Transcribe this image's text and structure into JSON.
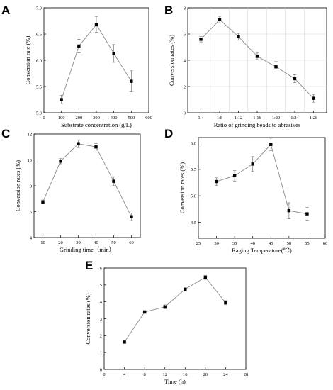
{
  "chart_data": [
    {
      "panel": "A",
      "type": "line",
      "xlabel": "Substrate concentration (g/L)",
      "ylabel": "Conversion rate (%)",
      "xlim": [
        0,
        600
      ],
      "ylim": [
        5.0,
        7.0
      ],
      "xticks": [
        0,
        100,
        200,
        300,
        400,
        500,
        600
      ],
      "yticks": [
        5.0,
        5.5,
        6.0,
        6.5,
        7.0
      ],
      "ytick_decimals": 1,
      "x": [
        100,
        200,
        300,
        400,
        500
      ],
      "y": [
        5.25,
        6.27,
        6.68,
        6.13,
        5.6
      ],
      "err": [
        0.08,
        0.13,
        0.15,
        0.17,
        0.2
      ]
    },
    {
      "panel": "B",
      "type": "line",
      "xlabel": "Ratio of grinding beads to abrasives",
      "ylabel": "Conversion rates (%)",
      "categories": [
        "1:4",
        "1:8",
        "1:12",
        "1:16",
        "1:20",
        "1:24",
        "1:28"
      ],
      "ylim": [
        0,
        8
      ],
      "yticks": [
        0,
        2,
        4,
        6,
        8
      ],
      "ytick_decimals": 0,
      "y": [
        5.6,
        7.1,
        5.8,
        4.3,
        3.5,
        2.6,
        1.1
      ],
      "err": [
        0.2,
        0.25,
        0.25,
        0.25,
        0.4,
        0.3,
        0.3
      ]
    },
    {
      "panel": "C",
      "type": "line",
      "xlabel": "Grinding time（min）",
      "ylabel": "Conversion rates (%)",
      "xlim": [
        5,
        65
      ],
      "ylim": [
        4,
        12
      ],
      "xticks": [
        10,
        20,
        30,
        40,
        50,
        60
      ],
      "yticks": [
        4,
        6,
        8,
        10,
        12
      ],
      "ytick_decimals": 0,
      "x": [
        10,
        20,
        30,
        40,
        50,
        60
      ],
      "y": [
        6.75,
        9.9,
        11.25,
        11.0,
        8.35,
        5.6
      ],
      "err": [
        0.15,
        0.2,
        0.3,
        0.25,
        0.35,
        0.3
      ]
    },
    {
      "panel": "D",
      "type": "line",
      "xlabel": "Raging   Temperature(℃)",
      "ylabel": "Conversion rates (%)",
      "xlim": [
        25,
        60
      ],
      "ylim": [
        4.2,
        6.1
      ],
      "xticks": [
        25,
        30,
        35,
        40,
        45,
        50,
        55,
        60
      ],
      "yticks": [
        4.5,
        5.0,
        5.5,
        6.0
      ],
      "ytick_decimals": 1,
      "x": [
        30,
        35,
        40,
        45,
        50,
        55
      ],
      "y": [
        5.27,
        5.38,
        5.6,
        5.97,
        4.72,
        4.66
      ],
      "err": [
        0.07,
        0.1,
        0.14,
        0.12,
        0.15,
        0.12
      ]
    },
    {
      "panel": "E",
      "type": "line",
      "xlabel": "Time (h)",
      "ylabel": "Conversion rates (%)",
      "xlim": [
        0,
        28
      ],
      "ylim": [
        0,
        6
      ],
      "xticks": [
        0,
        4,
        8,
        12,
        16,
        20,
        24,
        28
      ],
      "yticks": [
        0,
        1,
        2,
        3,
        4,
        5,
        6
      ],
      "ytick_decimals": 0,
      "x": [
        4,
        8,
        12,
        16,
        20,
        24
      ],
      "y": [
        1.62,
        3.4,
        3.7,
        4.75,
        5.45,
        3.95
      ],
      "err": [
        0.05,
        0.08,
        0.12,
        0.08,
        0.12,
        0.12
      ]
    }
  ]
}
